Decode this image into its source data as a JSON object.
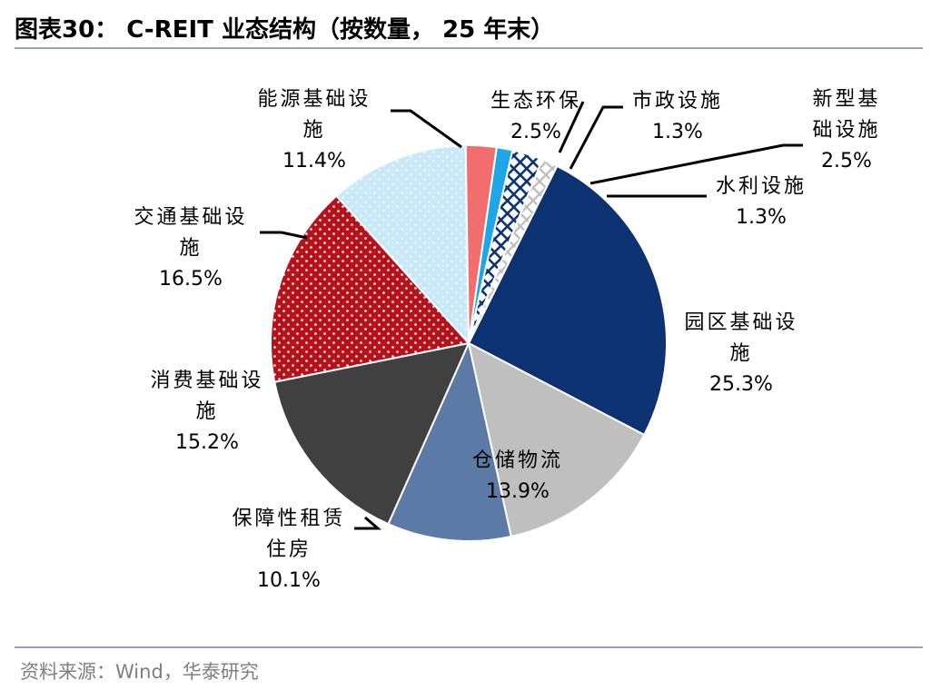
{
  "header": {
    "title": "图表30：  C-REIT 业态结构（按数量， 25 年末）"
  },
  "footer": {
    "source": "资料来源：Wind，华泰研究"
  },
  "chart_data": {
    "type": "pie",
    "title": "C-REIT 业态结构（按数量， 25 年末）",
    "unit": "%",
    "slices": [
      {
        "label": "园区基础设施",
        "label_lines": [
          "园区基础设",
          "施"
        ],
        "value": 25.3,
        "value_label": "25.3%",
        "color": "#0d3272",
        "pattern": "none"
      },
      {
        "label": "仓储物流",
        "label_lines": [
          "仓储物流"
        ],
        "value": 13.9,
        "value_label": "13.9%",
        "color": "#bfbfbf",
        "pattern": "none"
      },
      {
        "label": "保障性租赁住房",
        "label_lines": [
          "保障性租赁",
          "住房"
        ],
        "value": 10.1,
        "value_label": "10.1%",
        "color": "#5b7aa6",
        "pattern": "none"
      },
      {
        "label": "消费基础设施",
        "label_lines": [
          "消费基础设",
          "施"
        ],
        "value": 15.2,
        "value_label": "15.2%",
        "color": "#404040",
        "pattern": "none"
      },
      {
        "label": "交通基础设施",
        "label_lines": [
          "交通基础设",
          "施"
        ],
        "value": 16.5,
        "value_label": "16.5%",
        "color": "#b5121b",
        "pattern": "dots"
      },
      {
        "label": "能源基础设施",
        "label_lines": [
          "能源基础设",
          "施"
        ],
        "value": 11.4,
        "value_label": "11.4%",
        "color": "#c9e9f9",
        "pattern": "dots"
      },
      {
        "label": "生态环保",
        "label_lines": [
          "生态环保"
        ],
        "value": 2.5,
        "value_label": "2.5%",
        "color": "#f26d6d",
        "pattern": "none"
      },
      {
        "label": "市政设施",
        "label_lines": [
          "市政设施"
        ],
        "value": 1.3,
        "value_label": "1.3%",
        "color": "#1ea6e6",
        "pattern": "none"
      },
      {
        "label": "新型基础设施",
        "label_lines": [
          "新型基",
          "础设施"
        ],
        "value": 2.5,
        "value_label": "2.5%",
        "color": "#0d3272",
        "pattern": "grid"
      },
      {
        "label": "水利设施",
        "label_lines": [
          "水利设施"
        ],
        "value": 1.3,
        "value_label": "1.3%",
        "color": "#bfbfbf",
        "pattern": "grid"
      }
    ]
  }
}
